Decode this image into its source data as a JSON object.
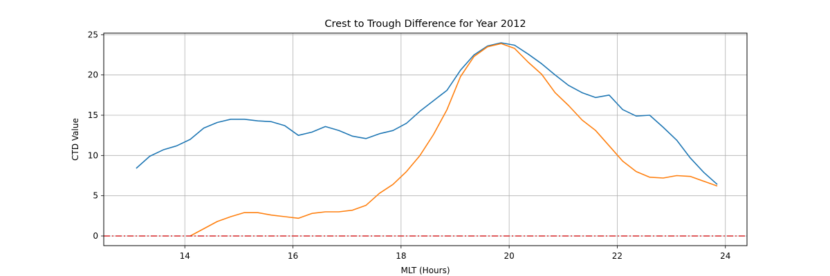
{
  "chart_data": {
    "type": "line",
    "title": "Crest to Trough Difference for Year 2012",
    "xlabel": "MLT (Hours)",
    "ylabel": "CTD Value",
    "xlim": [
      12.5,
      24.4
    ],
    "ylim": [
      -1.2,
      25.2
    ],
    "xticks": [
      14,
      16,
      18,
      20,
      22,
      24
    ],
    "yticks": [
      0,
      5,
      10,
      15,
      20,
      25
    ],
    "grid": true,
    "series": [
      {
        "color": "#1f77b4",
        "x": [
          13.1,
          13.35,
          13.6,
          13.85,
          14.1,
          14.35,
          14.6,
          14.85,
          15.1,
          15.35,
          15.6,
          15.85,
          16.1,
          16.35,
          16.6,
          16.85,
          17.1,
          17.35,
          17.6,
          17.85,
          18.1,
          18.35,
          18.6,
          18.85,
          19.1,
          19.35,
          19.6,
          19.85,
          20.1,
          20.35,
          20.6,
          20.85,
          21.1,
          21.35,
          21.6,
          21.85,
          22.1,
          22.35,
          22.6,
          22.85,
          23.1,
          23.35,
          23.6,
          23.85
        ],
        "y": [
          8.4,
          9.9,
          10.7,
          11.2,
          12.0,
          13.4,
          14.1,
          14.5,
          14.5,
          14.3,
          14.2,
          13.7,
          12.5,
          12.9,
          13.6,
          13.1,
          12.4,
          12.1,
          12.7,
          13.1,
          14.0,
          15.5,
          16.8,
          18.1,
          20.6,
          22.5,
          23.6,
          24.0,
          23.7,
          22.6,
          21.4,
          20.0,
          18.7,
          17.8,
          17.2,
          17.5,
          15.7,
          14.9,
          15.0,
          13.5,
          11.9,
          9.7,
          7.9,
          6.4
        ]
      },
      {
        "color": "#ff7f0e",
        "x": [
          14.1,
          14.35,
          14.6,
          14.85,
          15.1,
          15.35,
          15.6,
          15.85,
          16.1,
          16.35,
          16.6,
          16.85,
          17.1,
          17.35,
          17.6,
          17.85,
          18.1,
          18.35,
          18.6,
          18.85,
          19.1,
          19.35,
          19.6,
          19.85,
          20.1,
          20.35,
          20.6,
          20.85,
          21.1,
          21.35,
          21.6,
          21.85,
          22.1,
          22.35,
          22.6,
          22.85,
          23.1,
          23.35,
          23.6,
          23.85
        ],
        "y": [
          0.0,
          0.9,
          1.8,
          2.4,
          2.9,
          2.9,
          2.6,
          2.4,
          2.2,
          2.8,
          3.0,
          3.0,
          3.2,
          3.8,
          5.3,
          6.4,
          8.0,
          10.0,
          12.6,
          15.7,
          19.8,
          22.3,
          23.5,
          23.9,
          23.3,
          21.6,
          20.1,
          17.8,
          16.2,
          14.4,
          13.1,
          11.2,
          9.3,
          8.0,
          7.3,
          7.2,
          7.5,
          7.4,
          6.8,
          6.2
        ]
      }
    ],
    "reference_line": {
      "y": 0,
      "color": "#d62728",
      "style": "dash-dot"
    }
  }
}
